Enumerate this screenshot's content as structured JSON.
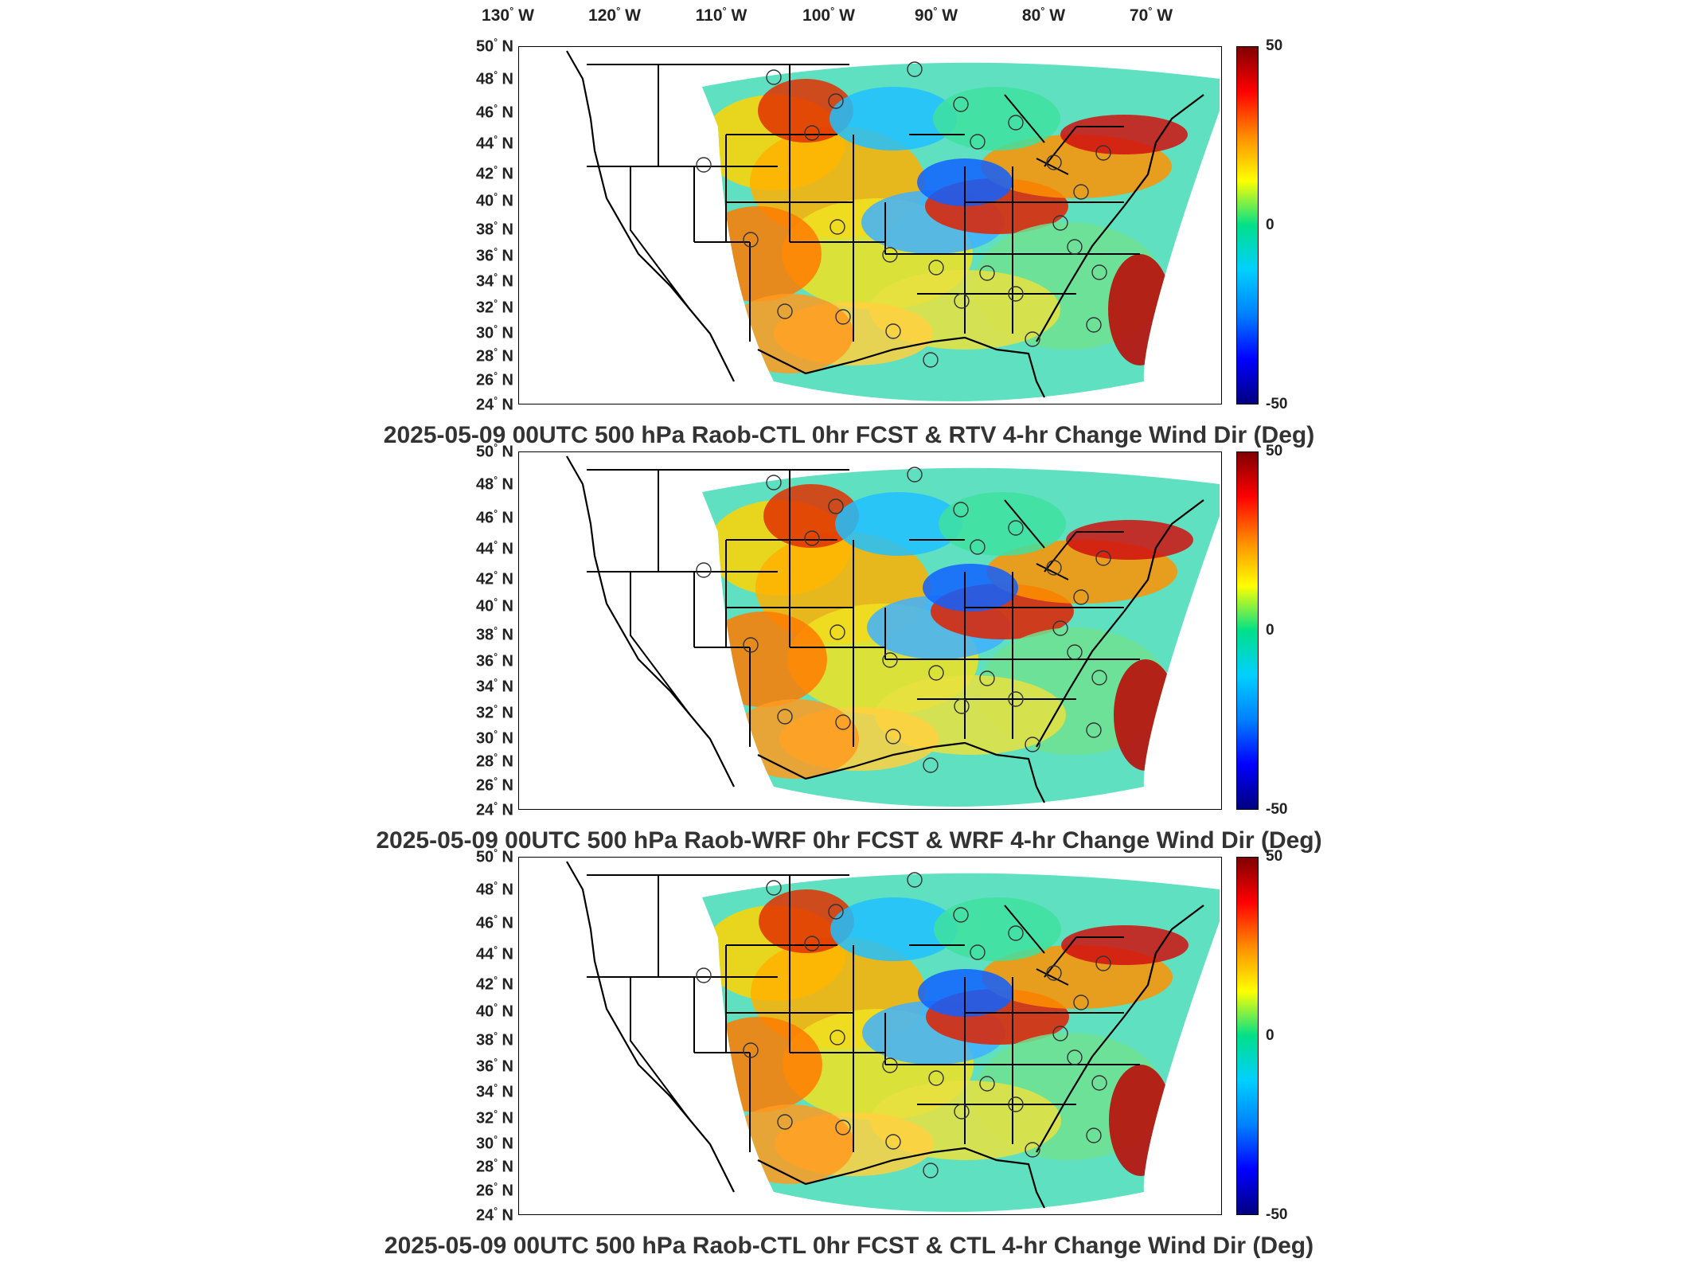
{
  "longitude_labels": [
    {
      "deg": "130",
      "dir": "W"
    },
    {
      "deg": "120",
      "dir": "W"
    },
    {
      "deg": "110",
      "dir": "W"
    },
    {
      "deg": "100",
      "dir": "W"
    },
    {
      "deg": "90",
      "dir": "W"
    },
    {
      "deg": "80",
      "dir": "W"
    },
    {
      "deg": "70",
      "dir": "W"
    }
  ],
  "latitude_labels": [
    {
      "deg": "50",
      "dir": "N"
    },
    {
      "deg": "48",
      "dir": "N"
    },
    {
      "deg": "46",
      "dir": "N"
    },
    {
      "deg": "44",
      "dir": "N"
    },
    {
      "deg": "42",
      "dir": "N"
    },
    {
      "deg": "40",
      "dir": "N"
    },
    {
      "deg": "38",
      "dir": "N"
    },
    {
      "deg": "36",
      "dir": "N"
    },
    {
      "deg": "34",
      "dir": "N"
    },
    {
      "deg": "32",
      "dir": "N"
    },
    {
      "deg": "30",
      "dir": "N"
    },
    {
      "deg": "28",
      "dir": "N"
    },
    {
      "deg": "26",
      "dir": "N"
    },
    {
      "deg": "24",
      "dir": "N"
    }
  ],
  "colorbar": {
    "max": "50",
    "mid": "0",
    "min": "-50",
    "colors": [
      "#800000",
      "#ff0000",
      "#ff8c00",
      "#ffff00",
      "#00e08a",
      "#00d0ff",
      "#0080ff",
      "#0000ff",
      "#000080"
    ]
  },
  "panels": [
    {
      "title": "2025-05-09 00UTC 500 hPa Raob-CTL 0hr FCST & RTV 4-hr Change Wind Dir (Deg)"
    },
    {
      "title": "2025-05-09 00UTC 500 hPa Raob-WRF 0hr FCST & WRF 4-hr Change Wind Dir (Deg)"
    },
    {
      "title": "2025-05-09 00UTC 500 hPa Raob-CTL 0hr FCST & CTL 4-hr Change Wind Dir (Deg)"
    }
  ]
}
